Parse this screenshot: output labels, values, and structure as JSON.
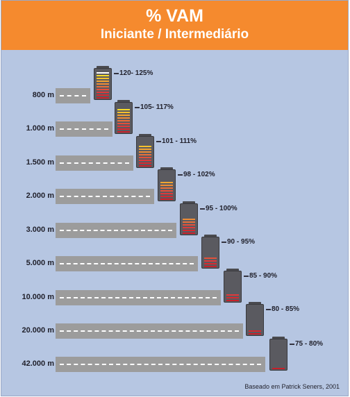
{
  "header": {
    "title": "% VAM",
    "subtitle": "Iniciante / Intermediário"
  },
  "rows": [
    {
      "distance": "800 m",
      "range": "120- 125%",
      "filled_bars": 10
    },
    {
      "distance": "1.000 m",
      "range": "105- 117%",
      "filled_bars": 9
    },
    {
      "distance": "1.500 m",
      "range": "101 - 111%",
      "filled_bars": 8
    },
    {
      "distance": "2.000 m",
      "range": "98 - 102%",
      "filled_bars": 7
    },
    {
      "distance": "3.000 m",
      "range": "95 - 100%",
      "filled_bars": 6
    },
    {
      "distance": "5.000 m",
      "range": "90 - 95%",
      "filled_bars": 4
    },
    {
      "distance": "10.000 m",
      "range": "85 - 90%",
      "filled_bars": 3
    },
    {
      "distance": "20.000 m",
      "range": "80 - 85%",
      "filled_bars": 2
    },
    {
      "distance": "42.000 m",
      "range": "75 - 80%",
      "filled_bars": 1
    }
  ],
  "bar_colors": [
    "#c8202a",
    "#d62a30",
    "#e0393a",
    "#e4503a",
    "#e8703a",
    "#ee8c36",
    "#f3a531",
    "#f6c22c",
    "#f7dc2a",
    "#ffffff"
  ],
  "colors": {
    "header": "#f58a2e",
    "background": "#b6c6e2",
    "road": "#9c9c9c",
    "battery": "#5a5a60"
  },
  "footer": {
    "source": "Baseado em Patrick Seners, 2001"
  }
}
